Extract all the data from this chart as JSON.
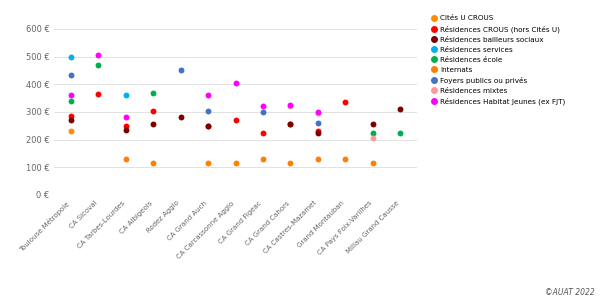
{
  "categories": [
    "Toulouse Métropole",
    "CA Sicoval",
    "CA Tarbes-Lourdes",
    "CA Albigeois",
    "Rodez Agglo",
    "CA Grand Auch",
    "CA Carcassonne Agglo",
    "CA Grand Figeac",
    "CA Grand Cahors",
    "CA Castres-Mazamet",
    "Grand Montauban",
    "CA Pays Foix-Varilhes",
    "Millau Grand Causse"
  ],
  "series": {
    "Cités U CROUS": {
      "color": "#FF8C00",
      "data": {
        "Toulouse Métropole": 230
      }
    },
    "Résidences CROUS (hors Cités U)": {
      "color": "#FF0000",
      "data": {
        "Toulouse Métropole": 285,
        "CA Sicoval": 365,
        "CA Tarbes-Lourdes": 250,
        "CA Albigeois": 305,
        "CA Grand Auch": 250,
        "CA Carcassonne Agglo": 270,
        "CA Grand Figeac": 225,
        "CA Grand Cahors": 255,
        "CA Castres-Mazamet": 230,
        "Grand Montauban": 335
      }
    },
    "Résidences bailleurs sociaux": {
      "color": "#7B0000",
      "data": {
        "Toulouse Métropole": 270,
        "CA Tarbes-Lourdes": 235,
        "CA Albigeois": 255,
        "Rodez Agglo": 280,
        "CA Grand Auch": 250,
        "CA Grand Cahors": 255,
        "CA Castres-Mazamet": 225,
        "CA Pays Foix-Varilhes": 255,
        "Millau Grand Causse": 310
      }
    },
    "Résidences services": {
      "color": "#00B0F0",
      "data": {
        "Toulouse Métropole": 500,
        "CA Tarbes-Lourdes": 360
      }
    },
    "Résidences école": {
      "color": "#00B050",
      "data": {
        "Toulouse Métropole": 340,
        "CA Sicoval": 470,
        "CA Albigeois": 370,
        "CA Pays Foix-Varilhes": 225,
        "Millau Grand Causse": 225
      }
    },
    "Internats": {
      "color": "#FF8000",
      "data": {
        "CA Tarbes-Lourdes": 130,
        "CA Albigeois": 115,
        "CA Grand Auch": 115,
        "CA Carcassonne Agglo": 115,
        "CA Grand Figeac": 130,
        "CA Grand Cahors": 115,
        "CA Castres-Mazamet": 130,
        "Grand Montauban": 130,
        "CA Pays Foix-Varilhes": 115
      }
    },
    "Foyers publics ou privés": {
      "color": "#4472C4",
      "data": {
        "Toulouse Métropole": 435,
        "Rodez Agglo": 450,
        "CA Grand Auch": 305,
        "CA Grand Figeac": 300,
        "CA Castres-Mazamet": 260
      }
    },
    "Résidences mixtes": {
      "color": "#FF9999",
      "data": {
        "CA Grand Cahors": 320,
        "CA Castres-Mazamet": 295,
        "CA Pays Foix-Varilhes": 205
      }
    },
    "Résidences Habitat Jeunes (ex FJT)": {
      "color": "#FF00FF",
      "data": {
        "Toulouse Métropole": 360,
        "CA Sicoval": 505,
        "CA Tarbes-Lourdes": 280,
        "CA Grand Auch": 360,
        "CA Carcassonne Agglo": 405,
        "CA Grand Figeac": 320,
        "CA Grand Cahors": 325,
        "CA Castres-Mazamet": 300
      }
    }
  },
  "ylim": [
    0,
    650
  ],
  "yticks": [
    0,
    100,
    200,
    300,
    400,
    500,
    600
  ],
  "background_color": "#FFFFFF",
  "grid_color": "#DDDDDD",
  "copyright": "©AUAT 2022",
  "marker_size": 18,
  "tick_fontsize": 5.0,
  "legend_fontsize": 5.2,
  "ytick_fontsize": 6.0
}
